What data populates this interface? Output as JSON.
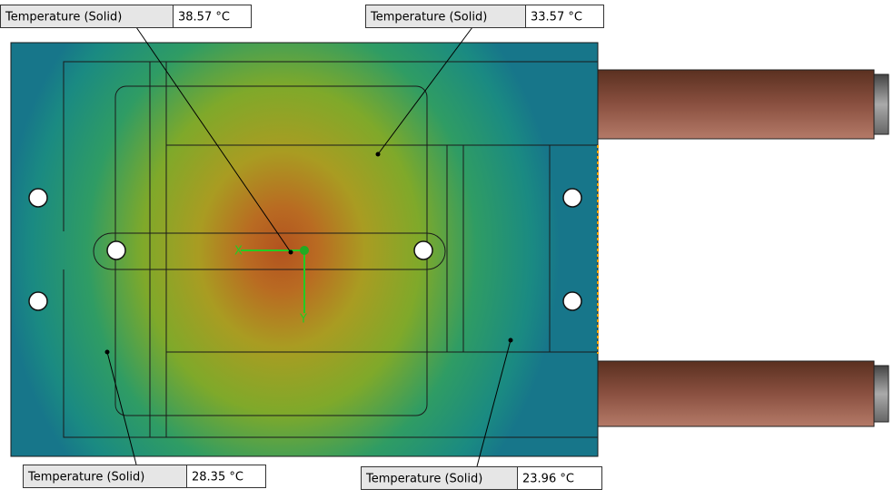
{
  "probes": [
    {
      "label": "Temperature (Solid)",
      "value": "38.57 °C"
    },
    {
      "label": "Temperature (Solid)",
      "value": "33.57 °C"
    },
    {
      "label": "Temperature (Solid)",
      "value": "28.35 °C"
    },
    {
      "label": "Temperature (Solid)",
      "value": "23.96 °C"
    }
  ],
  "axes": {
    "x": "X",
    "y": "Y"
  }
}
